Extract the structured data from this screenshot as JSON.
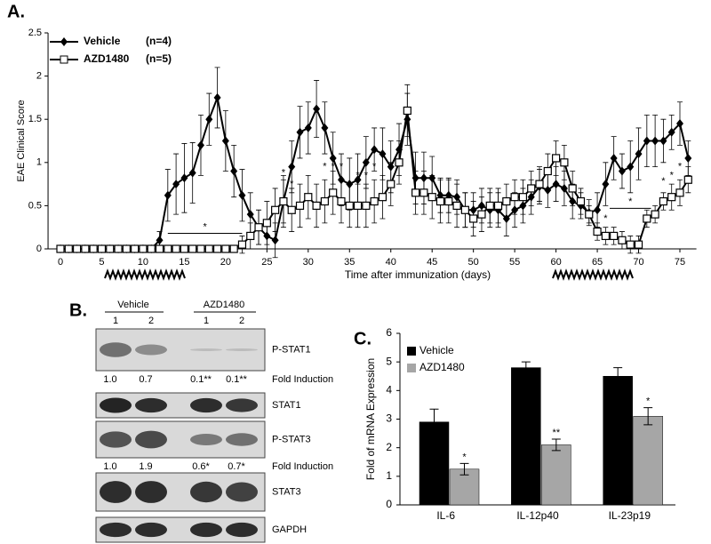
{
  "chart_data": [
    {
      "type": "line",
      "panel": "A.",
      "ylabel": "EAE Clinical Score",
      "xlabel": "Time after immunization (days)",
      "x": [
        0,
        1,
        2,
        3,
        4,
        5,
        6,
        7,
        8,
        9,
        10,
        11,
        12,
        13,
        14,
        15,
        16,
        17,
        18,
        19,
        20,
        21,
        22,
        23,
        24,
        25,
        26,
        27,
        28,
        29,
        30,
        31,
        32,
        33,
        34,
        35,
        36,
        37,
        38,
        39,
        40,
        41,
        42,
        43,
        44,
        45,
        46,
        47,
        48,
        49,
        50,
        51,
        52,
        53,
        54,
        55,
        56,
        57,
        58,
        59,
        60,
        61,
        62,
        63,
        64,
        65,
        66,
        67,
        68,
        69,
        70,
        71,
        72,
        73,
        74,
        75,
        76
      ],
      "xlim": [
        -1.5,
        77
      ],
      "xticks": [
        0,
        5,
        10,
        15,
        20,
        25,
        30,
        35,
        40,
        45,
        50,
        55,
        60,
        65,
        70,
        75
      ],
      "ylim": [
        0,
        2.5
      ],
      "yticks": [
        0,
        0.5,
        1,
        1.5,
        2,
        2.5
      ],
      "series": [
        {
          "name": "Vehicle",
          "n_label": "(n=4)",
          "color": "#000000",
          "marker": "diamond",
          "values": [
            0,
            0,
            0,
            0,
            0,
            0,
            0,
            0,
            0,
            0,
            0,
            0,
            0.1,
            0.62,
            0.75,
            0.82,
            0.88,
            1.2,
            1.5,
            1.75,
            1.25,
            0.9,
            0.62,
            0.4,
            0.25,
            0.15,
            0.1,
            0.55,
            0.95,
            1.35,
            1.4,
            1.62,
            1.4,
            1.05,
            0.8,
            0.75,
            0.8,
            1.0,
            1.15,
            1.1,
            0.95,
            1.15,
            1.5,
            0.82,
            0.82,
            0.82,
            0.62,
            0.62,
            0.6,
            0.45,
            0.45,
            0.5,
            0.45,
            0.45,
            0.35,
            0.45,
            0.5,
            0.6,
            0.72,
            0.68,
            0.75,
            0.7,
            0.55,
            0.5,
            0.42,
            0.45,
            0.75,
            1.05,
            0.9,
            0.95,
            1.1,
            1.25,
            1.25,
            1.25,
            1.35,
            1.45,
            1.05
          ],
          "errors": [
            0,
            0,
            0,
            0,
            0,
            0,
            0,
            0,
            0,
            0,
            0,
            0,
            0.1,
            0.3,
            0.35,
            0.4,
            0.35,
            0.35,
            0.3,
            0.35,
            0.35,
            0.3,
            0.3,
            0.25,
            0.2,
            0.15,
            0.2,
            0.3,
            0.3,
            0.3,
            0.3,
            0.33,
            0.3,
            0.3,
            0.3,
            0.3,
            0.3,
            0.3,
            0.25,
            0.3,
            0.3,
            0.3,
            0.3,
            0.3,
            0.3,
            0.25,
            0.2,
            0.2,
            0.2,
            0.2,
            0.2,
            0.2,
            0.2,
            0.2,
            0.2,
            0.2,
            0.2,
            0.2,
            0.2,
            0.2,
            0.2,
            0.2,
            0.2,
            0.15,
            0.15,
            0.2,
            0.25,
            0.25,
            0.2,
            0.3,
            0.3,
            0.3,
            0.3,
            0.25,
            0.2,
            0.25,
            0.2
          ]
        },
        {
          "name": "AZD1480",
          "n_label": "(n=5)",
          "color": "#000000",
          "marker": "square",
          "values": [
            0,
            0,
            0,
            0,
            0,
            0,
            0,
            0,
            0,
            0,
            0,
            0,
            0,
            0,
            0,
            0,
            0,
            0,
            0,
            0,
            0,
            0,
            0.05,
            0.15,
            0.25,
            0.3,
            0.45,
            0.55,
            0.45,
            0.5,
            0.6,
            0.5,
            0.55,
            0.65,
            0.55,
            0.5,
            0.5,
            0.5,
            0.55,
            0.6,
            0.75,
            1.0,
            1.6,
            0.65,
            0.65,
            0.6,
            0.55,
            0.55,
            0.5,
            0.45,
            0.35,
            0.4,
            0.5,
            0.5,
            0.55,
            0.6,
            0.6,
            0.7,
            0.75,
            0.9,
            1.05,
            1.0,
            0.7,
            0.55,
            0.4,
            0.2,
            0.15,
            0.15,
            0.1,
            0.05,
            0.05,
            0.35,
            0.4,
            0.55,
            0.6,
            0.65,
            0.8
          ],
          "errors": [
            0,
            0,
            0,
            0,
            0,
            0,
            0,
            0,
            0,
            0,
            0,
            0,
            0,
            0,
            0,
            0,
            0,
            0,
            0,
            0,
            0,
            0,
            0.1,
            0.15,
            0.2,
            0.25,
            0.25,
            0.25,
            0.25,
            0.25,
            0.25,
            0.25,
            0.25,
            0.25,
            0.25,
            0.25,
            0.25,
            0.25,
            0.25,
            0.25,
            0.25,
            0.25,
            0.3,
            0.25,
            0.25,
            0.25,
            0.25,
            0.25,
            0.25,
            0.2,
            0.2,
            0.2,
            0.2,
            0.2,
            0.2,
            0.2,
            0.2,
            0.2,
            0.2,
            0.2,
            0.2,
            0.2,
            0.2,
            0.15,
            0.1,
            0.1,
            0.1,
            0.1,
            0.1,
            0.1,
            0.1,
            0.1,
            0.1,
            0.1,
            0.15,
            0.15,
            0.15
          ]
        }
      ],
      "spans": [
        {
          "text": "*",
          "from": 13,
          "to": 22,
          "y": 0.18
        },
        {
          "text": "*",
          "from": 66.5,
          "to": 71.5,
          "y": 0.47
        }
      ],
      "annotations": [
        {
          "text": "*",
          "x": 27,
          "y": 0.88
        },
        {
          "text": "*",
          "x": 28,
          "y": 0.75
        },
        {
          "text": "*",
          "x": 32,
          "y": 0.95
        },
        {
          "text": "*",
          "x": 33,
          "y": 0.95
        },
        {
          "text": "*",
          "x": 34,
          "y": 0.95
        },
        {
          "text": "*",
          "x": 36,
          "y": 0.85
        },
        {
          "text": "*",
          "x": 37,
          "y": 0.85
        },
        {
          "text": "*",
          "x": 38,
          "y": 0.95
        },
        {
          "text": "*",
          "x": 66,
          "y": 0.35
        },
        {
          "text": "*",
          "x": 73,
          "y": 0.78
        },
        {
          "text": "*",
          "x": 74,
          "y": 0.85
        },
        {
          "text": "*",
          "x": 75,
          "y": 0.95
        }
      ]
    },
    {
      "type": "bar",
      "panel": "C.",
      "ylabel": "Fold of mRNA Expression",
      "categories": [
        "IL-6",
        "IL-12p40",
        "IL-23p19"
      ],
      "ylim": [
        0,
        6
      ],
      "yticks": [
        0,
        1,
        2,
        3,
        4,
        5,
        6
      ],
      "series": [
        {
          "name": "Vehicle",
          "color": "#000000",
          "values": [
            2.9,
            4.8,
            4.5
          ],
          "errors": [
            0.45,
            0.2,
            0.3
          ]
        },
        {
          "name": "AZD1480",
          "color": "#a6a6a6",
          "values": [
            1.25,
            2.1,
            3.1
          ],
          "errors": [
            0.2,
            0.2,
            0.3
          ],
          "significance": [
            "*",
            "**",
            "*"
          ]
        }
      ]
    }
  ],
  "blot": {
    "panel": "B.",
    "groups": [
      "Vehicle",
      "AZD1480"
    ],
    "lanes": [
      "1",
      "2",
      "1",
      "2"
    ],
    "rows": [
      {
        "label": "P-STAT1",
        "fold_label": "Fold Induction",
        "fold": [
          "1.0",
          "0.7",
          "0.1**",
          "0.1**"
        ]
      },
      {
        "label": "STAT1"
      },
      {
        "label": "P-STAT3",
        "fold_label": "Fold Induction",
        "fold": [
          "1.0",
          "1.9",
          "0.6*",
          "0.7*"
        ]
      },
      {
        "label": "STAT3"
      },
      {
        "label": "GAPDH"
      }
    ]
  }
}
